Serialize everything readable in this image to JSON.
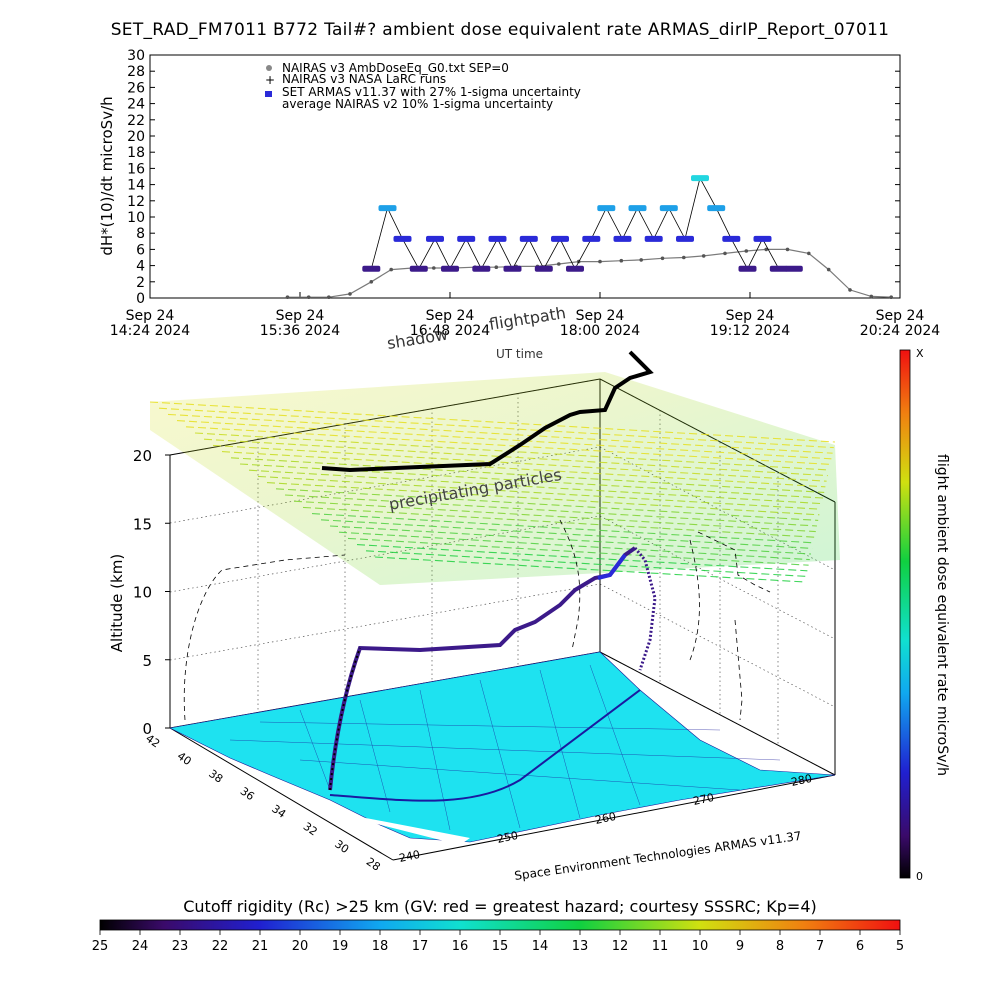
{
  "title": "SET_RAD_FM7011  B772 Tail#? ambient dose equivalent rate ARMAS_dirIP_Report_07011",
  "top_chart": {
    "ylabel": "dH*(10)/dt microSv/h",
    "yticks": [
      "0",
      "2",
      "4",
      "6",
      "8",
      "10",
      "12",
      "14",
      "16",
      "18",
      "20",
      "22",
      "24",
      "26",
      "28",
      "30"
    ],
    "xticks": [
      {
        "l1": "Sep 24",
        "l2": "14:24 2024"
      },
      {
        "l1": "Sep 24",
        "l2": "15:36 2024"
      },
      {
        "l1": "Sep 24",
        "l2": "16:48 2024"
      },
      {
        "l1": "Sep 24",
        "l2": "18:00 2024"
      },
      {
        "l1": "Sep 24",
        "l2": "19:12 2024"
      },
      {
        "l1": "Sep 24",
        "l2": "20:24 2024"
      }
    ],
    "legend": [
      "NAIRAS v3 AmbDoseEq_G0.txt SEP=0",
      "NAIRAS v3 NASA LaRC runs",
      "SET ARMAS v11.37 with 27% 1-sigma uncertainty",
      "average NAIRAS v2 10% 1-sigma uncertainty"
    ]
  },
  "chart_data": [
    {
      "type": "scatter",
      "title": "SET_RAD_FM7011  B772 Tail#? ambient dose equivalent rate ARMAS_dirIP_Report_07011",
      "xlabel": "",
      "ylabel": "dH*(10)/dt microSv/h",
      "ylim": [
        0,
        30
      ],
      "xlim": [
        "Sep 24 14:24 2024",
        "Sep 24 20:24 2024"
      ],
      "series": [
        {
          "name": "NAIRAS v3 AmbDoseEq_G0.txt SEP=0",
          "x_hours": [
            15.5,
            15.67,
            15.83,
            16.0,
            16.17,
            16.33,
            16.5,
            16.67,
            16.83,
            17.0,
            17.17,
            17.33,
            17.5,
            17.67,
            17.83,
            18.0,
            18.17,
            18.33,
            18.5,
            18.67,
            18.83,
            19.0,
            19.17,
            19.33,
            19.5,
            19.67,
            19.83,
            20.0,
            20.17,
            20.33
          ],
          "values": [
            0.1,
            0.1,
            0.1,
            0.5,
            2.0,
            3.5,
            3.7,
            3.7,
            3.7,
            3.8,
            3.8,
            3.9,
            3.9,
            4.2,
            4.5,
            4.5,
            4.6,
            4.7,
            4.9,
            5.0,
            5.2,
            5.5,
            5.8,
            6.0,
            6.0,
            5.5,
            3.5,
            1.0,
            0.2,
            0.1
          ]
        },
        {
          "name": "SET ARMAS v11.37 with 27% 1-sigma uncertainty",
          "x_hours": [
            16.17,
            16.3,
            16.42,
            16.55,
            16.68,
            16.8,
            16.93,
            17.05,
            17.18,
            17.3,
            17.43,
            17.55,
            17.68,
            17.8,
            17.93,
            18.05,
            18.18,
            18.3,
            18.43,
            18.55,
            18.68,
            18.8,
            18.93,
            19.05,
            19.18,
            19.3,
            19.43,
            19.55
          ],
          "values": [
            3.6,
            11.1,
            7.3,
            3.6,
            7.3,
            3.6,
            7.3,
            3.6,
            7.3,
            3.6,
            7.3,
            3.6,
            7.3,
            3.6,
            7.3,
            11.1,
            7.3,
            11.1,
            7.3,
            11.1,
            7.3,
            14.8,
            11.1,
            7.3,
            3.6,
            7.3,
            3.6,
            3.6
          ]
        }
      ]
    },
    {
      "type": "heatmap",
      "title": "",
      "zlabel": "Altitude (km)",
      "zlim": [
        0,
        20
      ],
      "z_ticks": [
        "0",
        "5",
        "10",
        "15",
        "20"
      ],
      "lat_ticks": [
        "42",
        "40",
        "38",
        "36",
        "34",
        "32",
        "30",
        "28"
      ],
      "lon_ticks": [
        "240",
        "250",
        "260",
        "270",
        "280"
      ],
      "colorbar_label": "flight ambient dose equivalent rate microSv/h",
      "colorbar_ticks": [
        "0",
        "X"
      ],
      "annotations": [
        "shadow",
        "flightpath",
        "UT time",
        "precipitating particles",
        "Space Environment Technologies ARMAS v11.37"
      ]
    },
    {
      "type": "heatmap",
      "title": "Cutoff rigidity (Rc) >25 km (GV: red = greatest hazard; courtesy SSSRC; Kp=4)",
      "ticks": [
        "25",
        "24",
        "23",
        "22",
        "21",
        "20",
        "19",
        "18",
        "17",
        "16",
        "15",
        "14",
        "13",
        "12",
        "11",
        "10",
        "9",
        "8",
        "7",
        "6",
        "5"
      ]
    }
  ],
  "colors": {
    "nairas_gray": "#7a7a7a",
    "armas_low": "#3c1a8a",
    "armas_mid": "#2a2ad8",
    "armas_high": "#1ea0e8",
    "armas_peak": "#22d6e0",
    "map_land": "#1ee2f0",
    "flightpath": "#000000"
  }
}
